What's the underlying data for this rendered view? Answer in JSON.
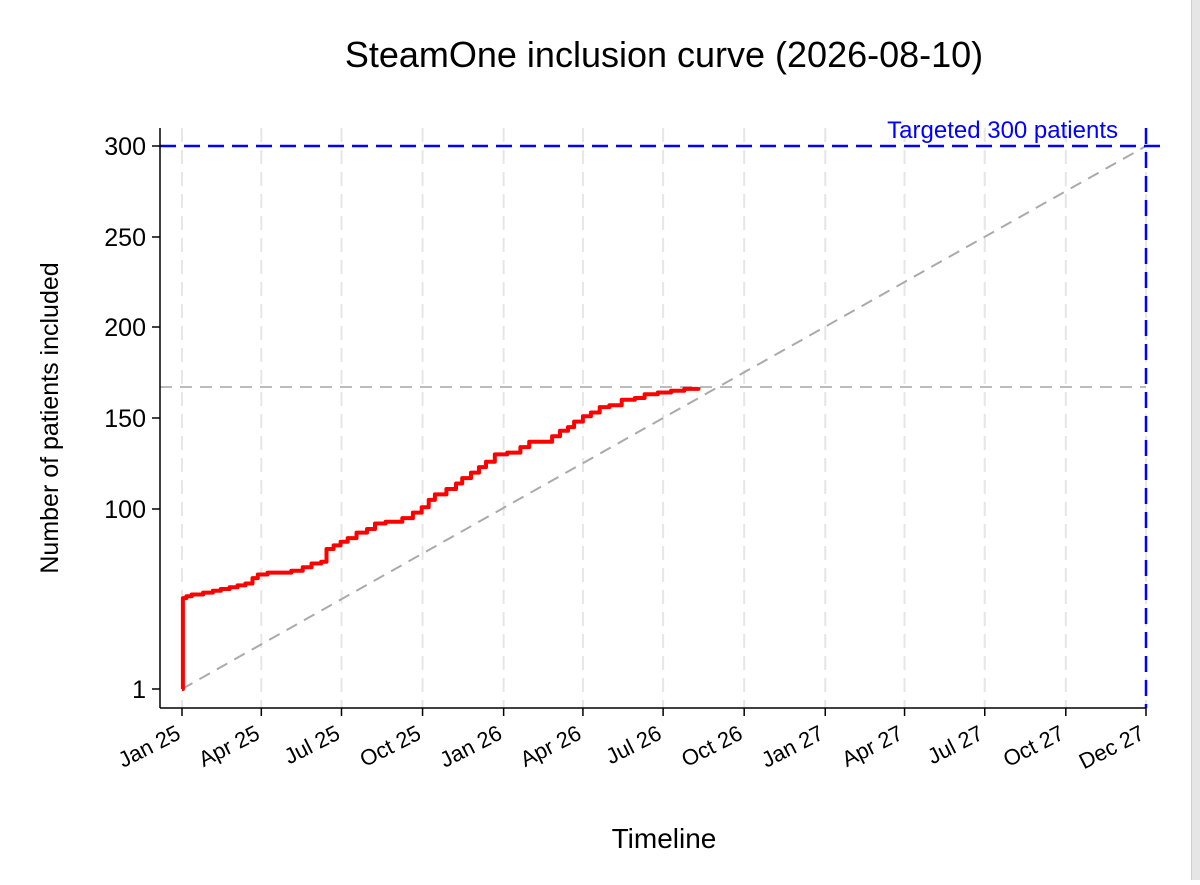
{
  "chart_data": {
    "type": "line",
    "title": "SteamOne inclusion curve (2026-08-10)",
    "xlabel": "Timeline",
    "ylabel": "Number of patients included",
    "yticks": [
      1,
      100,
      150,
      200,
      250,
      300
    ],
    "ylim": [
      1,
      300
    ],
    "xticks": [
      {
        "date": "2025-01-01",
        "label": "Jan 25"
      },
      {
        "date": "2025-04-01",
        "label": "Apr 25"
      },
      {
        "date": "2025-07-01",
        "label": "Jul 25"
      },
      {
        "date": "2025-10-01",
        "label": "Oct 25"
      },
      {
        "date": "2026-01-01",
        "label": "Jan 26"
      },
      {
        "date": "2026-04-01",
        "label": "Apr 26"
      },
      {
        "date": "2026-07-01",
        "label": "Jul 26"
      },
      {
        "date": "2026-10-01",
        "label": "Oct 26"
      },
      {
        "date": "2027-01-01",
        "label": "Jan 27"
      },
      {
        "date": "2027-04-01",
        "label": "Apr 27"
      },
      {
        "date": "2027-07-01",
        "label": "Jul 27"
      },
      {
        "date": "2027-10-01",
        "label": "Oct 27"
      },
      {
        "date": "2027-12-31",
        "label": "Dec 27"
      }
    ],
    "xlim": [
      "2025-01-01",
      "2027-12-31"
    ],
    "grid": true,
    "series": [
      {
        "color": "#ff0000",
        "step": true,
        "points": [
          [
            "2025-01-01",
            1
          ],
          [
            "2025-01-02",
            51
          ],
          [
            "2025-01-06",
            52
          ],
          [
            "2025-01-12",
            53
          ],
          [
            "2025-01-25",
            54
          ],
          [
            "2025-02-05",
            55
          ],
          [
            "2025-02-14",
            56
          ],
          [
            "2025-02-24",
            57
          ],
          [
            "2025-03-05",
            58
          ],
          [
            "2025-03-14",
            59
          ],
          [
            "2025-03-22",
            62
          ],
          [
            "2025-03-28",
            64
          ],
          [
            "2025-04-08",
            65
          ],
          [
            "2025-05-05",
            66
          ],
          [
            "2025-05-18",
            68
          ],
          [
            "2025-05-28",
            70
          ],
          [
            "2025-06-08",
            71
          ],
          [
            "2025-06-14",
            78
          ],
          [
            "2025-06-22",
            80
          ],
          [
            "2025-06-30",
            82
          ],
          [
            "2025-07-08",
            84
          ],
          [
            "2025-07-18",
            87
          ],
          [
            "2025-07-30",
            89
          ],
          [
            "2025-08-08",
            92
          ],
          [
            "2025-08-20",
            93
          ],
          [
            "2025-09-08",
            95
          ],
          [
            "2025-09-20",
            98
          ],
          [
            "2025-09-30",
            101
          ],
          [
            "2025-10-08",
            105
          ],
          [
            "2025-10-15",
            108
          ],
          [
            "2025-10-28",
            111
          ],
          [
            "2025-11-08",
            114
          ],
          [
            "2025-11-15",
            117
          ],
          [
            "2025-11-25",
            120
          ],
          [
            "2025-12-04",
            123
          ],
          [
            "2025-12-12",
            126
          ],
          [
            "2025-12-22",
            130
          ],
          [
            "2026-01-05",
            131
          ],
          [
            "2026-01-20",
            134
          ],
          [
            "2026-01-30",
            137
          ],
          [
            "2026-02-25",
            140
          ],
          [
            "2026-03-06",
            143
          ],
          [
            "2026-03-15",
            145
          ],
          [
            "2026-03-22",
            148
          ],
          [
            "2026-04-01",
            151
          ],
          [
            "2026-04-10",
            153
          ],
          [
            "2026-04-20",
            156
          ],
          [
            "2026-05-01",
            157
          ],
          [
            "2026-05-15",
            160
          ],
          [
            "2026-05-30",
            161
          ],
          [
            "2026-06-10",
            163
          ],
          [
            "2026-06-25",
            164
          ],
          [
            "2026-07-10",
            165
          ],
          [
            "2026-07-25",
            166
          ],
          [
            "2026-08-10",
            167
          ]
        ]
      }
    ],
    "reference_lines": [
      {
        "kind": "target",
        "label": "Targeted 300 patients",
        "y": 300,
        "x": "2027-12-31",
        "color": "#0000ff"
      },
      {
        "kind": "trend",
        "from": [
          "2025-01-01",
          1
        ],
        "to": [
          "2027-12-31",
          300
        ],
        "color": "#aaaaaa"
      },
      {
        "kind": "current",
        "y": 167,
        "color": "#bbbbbb"
      }
    ]
  }
}
